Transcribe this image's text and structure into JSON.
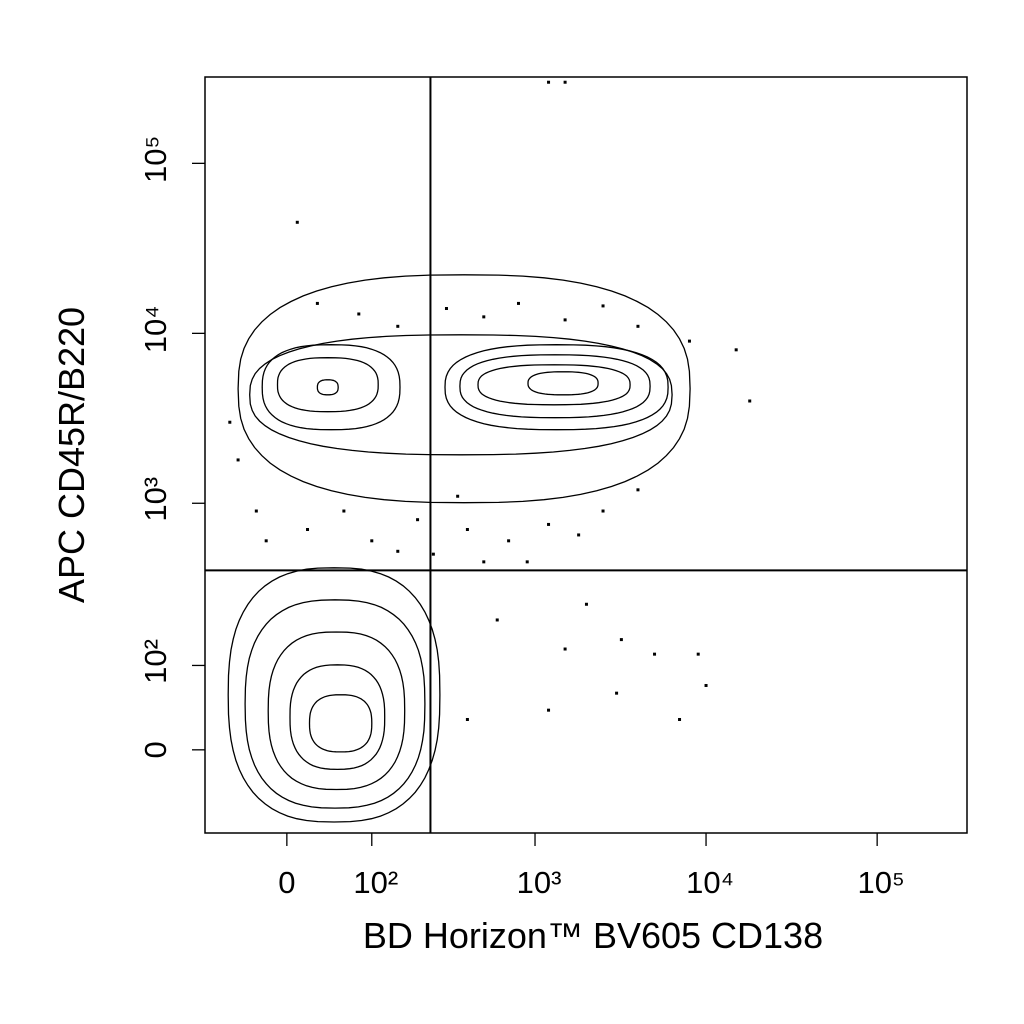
{
  "chart_data": {
    "type": "contour",
    "x_label": "BD Horizon™ BV605  CD138",
    "y_label": "APC  CD45R/B220",
    "xscale": "biexponential",
    "yscale": "biexponential",
    "xlim": [
      -95,
      335000
    ],
    "ylim": [
      -98,
      322000
    ],
    "xticks": [
      0,
      {
        "value": 100,
        "label": "10²"
      },
      {
        "value": 1000,
        "label": "10³"
      },
      {
        "value": 10000,
        "label": "10⁴"
      },
      {
        "value": 100000,
        "label": "10⁵"
      }
    ],
    "yticks": [
      0,
      {
        "value": 100,
        "label": "10²"
      },
      {
        "value": 1000,
        "label": "10³"
      },
      {
        "value": 10000,
        "label": "10⁴"
      },
      {
        "value": 100000,
        "label": "10⁵"
      }
    ],
    "color": "#000000",
    "gates": {
      "x": 240,
      "y": 400
    },
    "contours": [
      {
        "x": [
          -62,
          274
        ],
        "y": [
          -81,
          415
        ]
      },
      {
        "x": [
          -42,
          222
        ],
        "y": [
          -62,
          266
        ]
      },
      {
        "x": [
          -18,
          166
        ],
        "y": [
          -40,
          168
        ]
      },
      {
        "x": [
          3,
          123
        ],
        "y": [
          -19,
          101
        ]
      },
      {
        "x": [
          22,
          100
        ],
        "y": [
          -2,
          58
        ]
      },
      {
        "x": [
          -50,
          8070
        ],
        "y": [
          1007,
          22100
        ]
      },
      {
        "x": [
          -37,
          6330
        ],
        "y": [
          1930,
          9800
        ]
      },
      {
        "x": [
          -24,
          155
        ],
        "y": [
          2710,
          8570
        ]
      },
      {
        "x": [
          -9,
          111
        ],
        "y": [
          3460,
          7190
        ]
      },
      {
        "x": [
          30,
          53
        ],
        "y": [
          4350,
          5330
        ]
      },
      {
        "x": [
          294,
          6000
        ],
        "y": [
          2710,
          8570
        ]
      },
      {
        "x": [
          361,
          4710
        ],
        "y": [
          3190,
          7480
        ]
      },
      {
        "x": [
          462,
          3600
        ],
        "y": [
          3800,
          6530
        ]
      },
      {
        "x": [
          910,
          2340
        ],
        "y": [
          4350,
          5940
        ]
      }
    ],
    "points": {
      "x": [
        30,
        80,
        150,
        300,
        500,
        800,
        1500,
        2500,
        4000,
        8000,
        15000,
        18000,
        -60,
        -50,
        -30,
        20,
        100,
        200,
        400,
        700,
        1200,
        2500,
        4000,
        500,
        900,
        150,
        600,
        1500,
        3000,
        5000,
        9000,
        10000,
        1200,
        400,
        7000,
        2000,
        3200,
        10,
        1200,
        1500,
        -20,
        60,
        350,
        1800,
        250
      ],
      "y": [
        15000,
        13000,
        11000,
        14000,
        12500,
        15000,
        12000,
        14500,
        11000,
        9000,
        8000,
        4000,
        3000,
        1800,
        900,
        700,
        600,
        800,
        700,
        600,
        750,
        900,
        1200,
        450,
        450,
        520,
        200,
        130,
        60,
        120,
        120,
        70,
        40,
        30,
        30,
        250,
        150,
        45000,
        300000,
        300000,
        600,
        900,
        1100,
        650,
        500
      ]
    }
  }
}
